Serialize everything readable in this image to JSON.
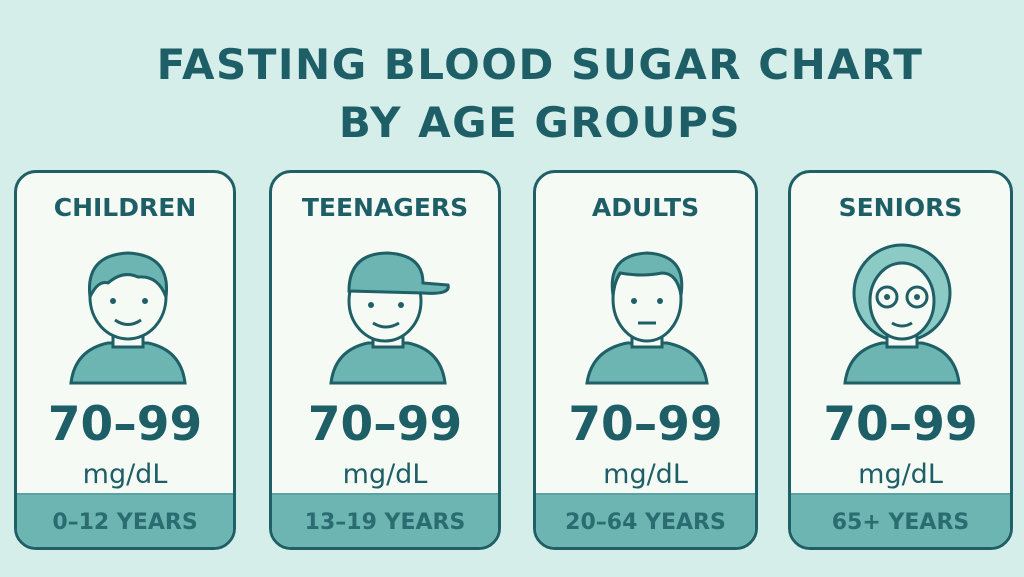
{
  "title": {
    "line1": "FASTING BLOOD SUGAR CHART",
    "line2": "BY AGE GROUPS"
  },
  "colors": {
    "background": "#d5eeea",
    "text": "#1e5f67",
    "band": "#6cb5b3",
    "card": "#f6faf5"
  },
  "cards": [
    {
      "label": "CHILDREN",
      "icon": "child-face-icon",
      "range": "70–99",
      "unit": "mg/dL",
      "age": "0–12 YEARS"
    },
    {
      "label": "TEENAGERS",
      "icon": "teen-cap-face-icon",
      "range": "70–99",
      "unit": "mg/dL",
      "age": "13–19 YEARS"
    },
    {
      "label": "ADULTS",
      "icon": "adult-face-icon",
      "range": "70–99",
      "unit": "mg/dL",
      "age": "20–64 YEARS"
    },
    {
      "label": "SENIORS",
      "icon": "senior-glasses-face-icon",
      "range": "70–99",
      "unit": "mg/dL",
      "age": "65+ YEARS"
    }
  ]
}
